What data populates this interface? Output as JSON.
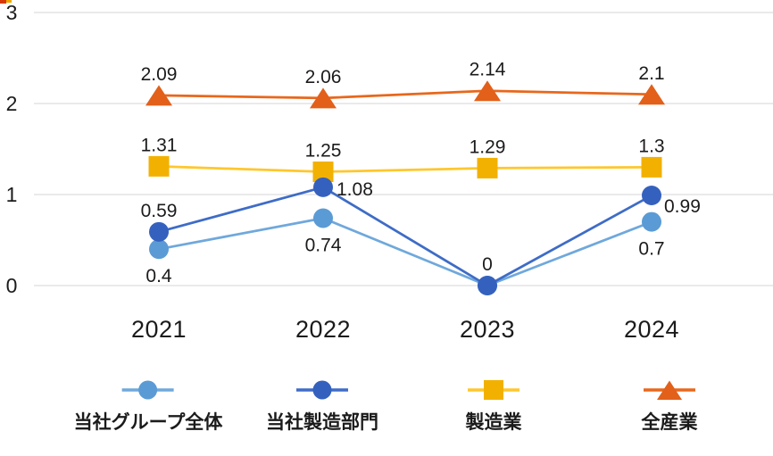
{
  "decoration": {
    "corner_fragment_colors": {
      "left": "#d63a08",
      "right": "#f0a800"
    }
  },
  "colors": {
    "background": "#ffffff",
    "gridline": "#e3e3e3",
    "text": "#1b1b1b"
  },
  "chart_data": {
    "type": "line",
    "title": "",
    "xlabel": "",
    "ylabel": "",
    "categories": [
      "2021",
      "2022",
      "2023",
      "2024"
    ],
    "y_ticks": [
      "0",
      "1",
      "2",
      "3"
    ],
    "ylim": [
      0,
      3
    ],
    "grid": true,
    "legend_position": "bottom",
    "series": [
      {
        "name": "当社グループ全体",
        "marker": "circle",
        "marker_color": "#5b9bd5",
        "line_color": "#6fa8dc",
        "values": [
          0.4,
          0.74,
          0,
          0.7
        ],
        "labels": [
          "0.4",
          "0.74",
          "",
          "0.7"
        ],
        "label_pos": [
          "below",
          "below",
          "none",
          "below"
        ]
      },
      {
        "name": "当社製造部門",
        "marker": "circle",
        "marker_color": "#3561be",
        "line_color": "#3e6cc7",
        "values": [
          0.59,
          1.08,
          0,
          0.99
        ],
        "labels": [
          "0.59",
          "1.08",
          "0",
          "0.99"
        ],
        "label_pos": [
          "above",
          "right",
          "above",
          "right-down"
        ]
      },
      {
        "name": "製造業",
        "marker": "square",
        "marker_color": "#f2b100",
        "line_color": "#ffc72c",
        "values": [
          1.31,
          1.25,
          1.29,
          1.3
        ],
        "labels": [
          "1.31",
          "1.25",
          "1.29",
          "1.3"
        ],
        "label_pos": [
          "above",
          "above",
          "above",
          "above"
        ]
      },
      {
        "name": "全産業",
        "marker": "triangle",
        "marker_color": "#e2601a",
        "line_color": "#e8671c",
        "values": [
          2.09,
          2.06,
          2.14,
          2.1
        ],
        "labels": [
          "2.09",
          "2.06",
          "2.14",
          "2.1"
        ],
        "label_pos": [
          "above",
          "above",
          "above",
          "above"
        ]
      }
    ]
  }
}
